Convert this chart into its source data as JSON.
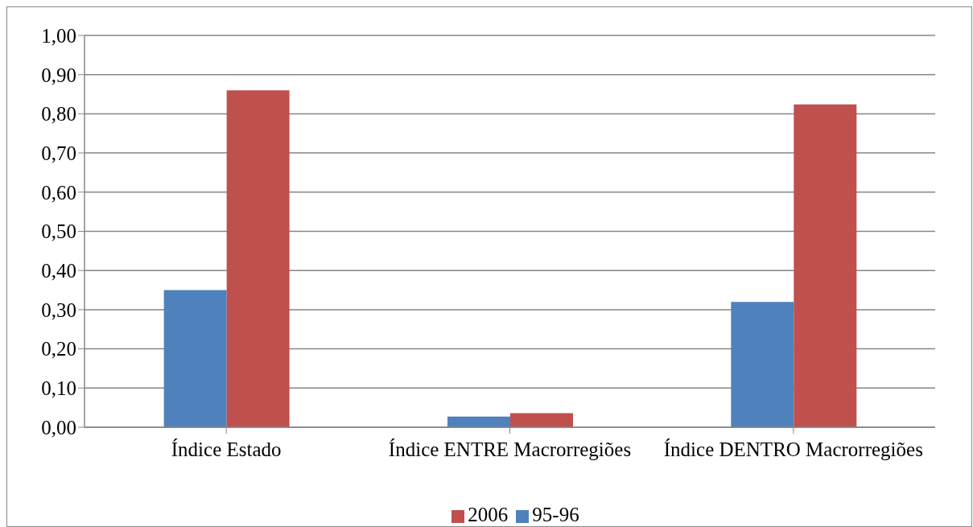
{
  "chart_data": {
    "type": "bar",
    "categories": [
      "Índice Estado",
      "Índice ENTRE Macrorregiões",
      "Índice DENTRO Macrorregiões"
    ],
    "series": [
      {
        "name": "95-96",
        "color": "#4f81bd",
        "values": [
          0.35,
          0.027,
          0.32
        ]
      },
      {
        "name": "2006",
        "color": "#c0504d",
        "values": [
          0.86,
          0.036,
          0.824
        ]
      }
    ],
    "ylim": [
      0,
      1
    ],
    "yticks": [
      {
        "value": 0,
        "label": "0,00"
      },
      {
        "value": 0.1,
        "label": "0,10"
      },
      {
        "value": 0.2,
        "label": "0,20"
      },
      {
        "value": 0.3,
        "label": "0,30"
      },
      {
        "value": 0.4,
        "label": "0,40"
      },
      {
        "value": 0.5,
        "label": "0,50"
      },
      {
        "value": 0.6,
        "label": "0,60"
      },
      {
        "value": 0.7,
        "label": "0,70"
      },
      {
        "value": 0.8,
        "label": "0,80"
      },
      {
        "value": 0.9,
        "label": "0,90"
      },
      {
        "value": 1,
        "label": "1,00"
      }
    ],
    "grid": "y",
    "legend": "bottom"
  }
}
